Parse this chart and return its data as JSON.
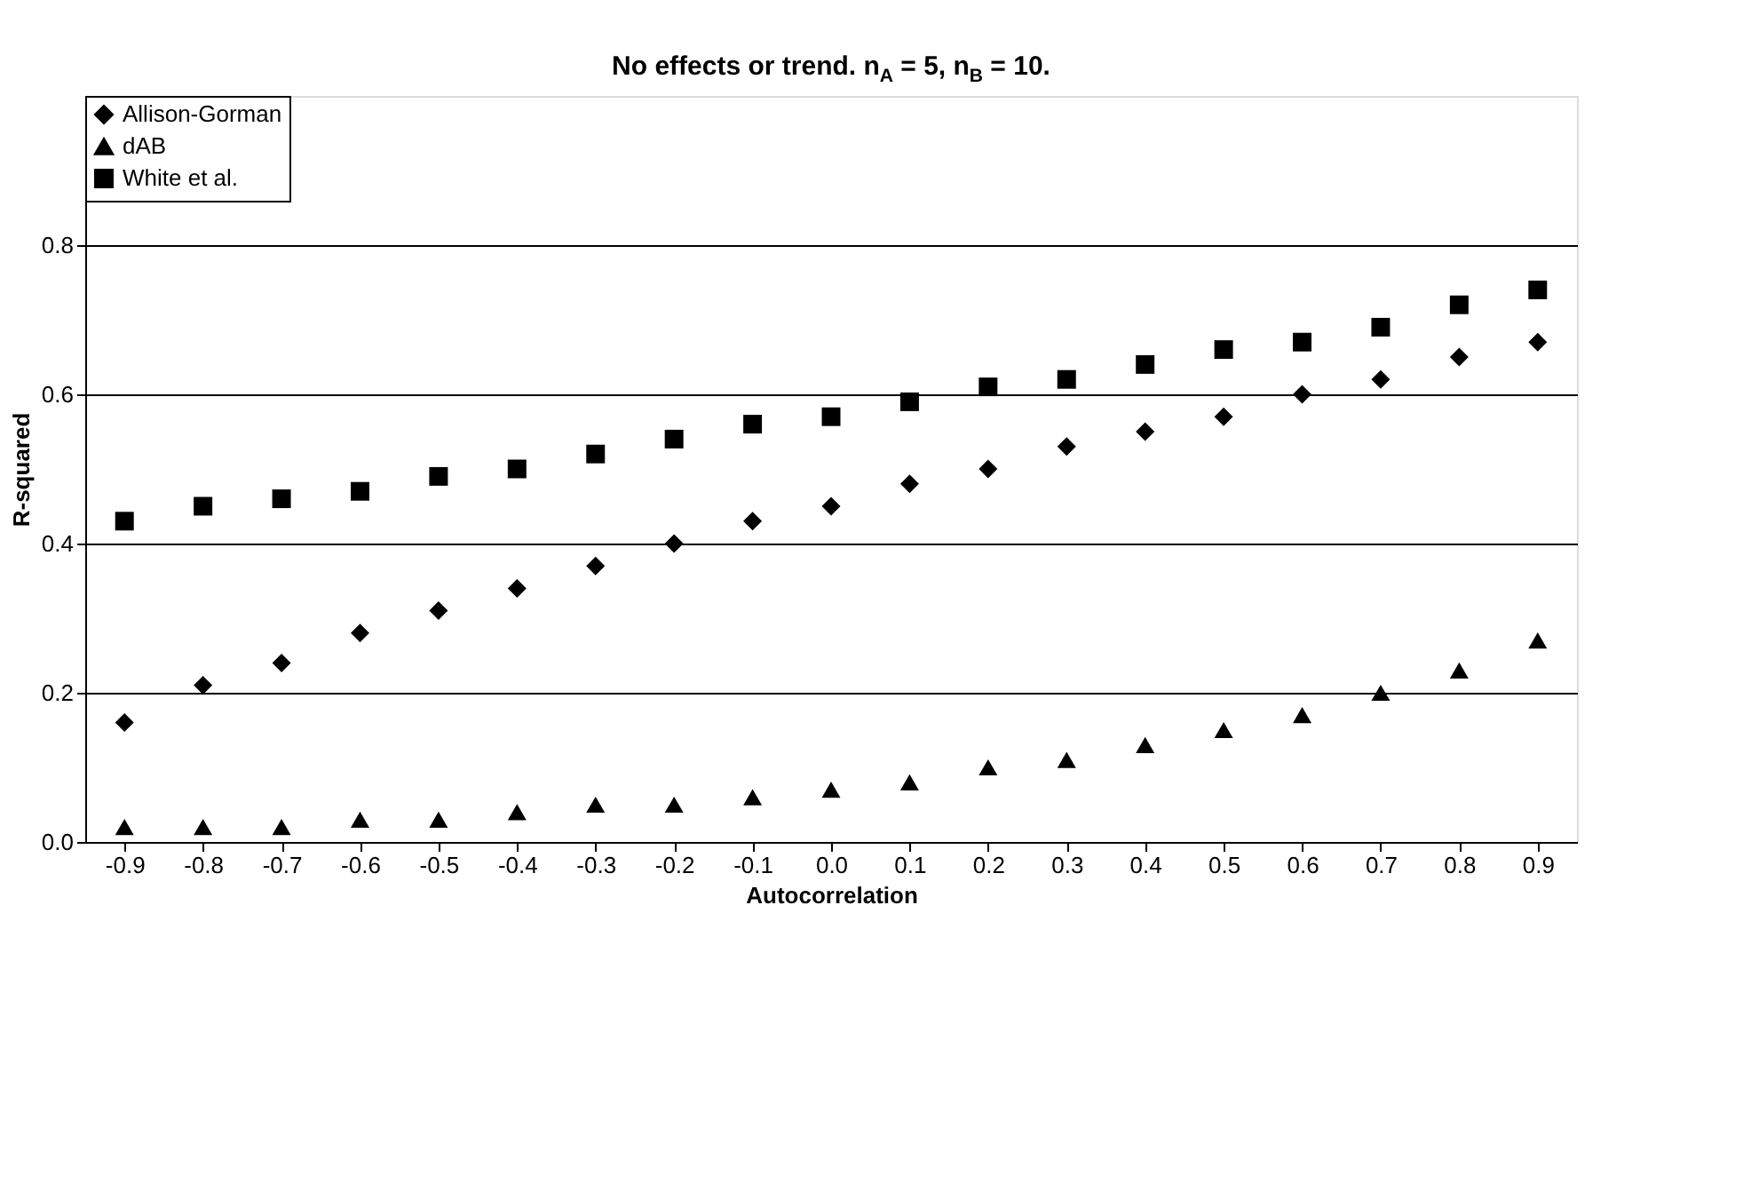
{
  "chart_data": {
    "type": "scatter",
    "title": "No effects or trend. n$_{A}$ = 5, n$_{B}$ = 10.",
    "xlabel": "Autocorrelation",
    "ylabel": "R-squared",
    "categories": [
      "-0.9",
      "-0.8",
      "-0.7",
      "-0.6",
      "-0.5",
      "-0.4",
      "-0.3",
      "-0.2",
      "-0.1",
      "0.0",
      "0.1",
      "0.2",
      "0.3",
      "0.4",
      "0.5",
      "0.6",
      "0.7",
      "0.8",
      "0.9"
    ],
    "series": [
      {
        "name": "Allison-Gorman",
        "color": "#000000",
        "marker": "diamond",
        "values": [
          0.16,
          0.21,
          0.24,
          0.28,
          0.31,
          0.34,
          0.37,
          0.4,
          0.43,
          0.45,
          0.48,
          0.5,
          0.53,
          0.55,
          0.57,
          0.6,
          0.62,
          0.65,
          0.67
        ]
      },
      {
        "name": "dAB",
        "color": "#000000",
        "marker": "triangle",
        "values": [
          0.02,
          0.02,
          0.02,
          0.03,
          0.03,
          0.04,
          0.05,
          0.05,
          0.06,
          0.07,
          0.08,
          0.1,
          0.11,
          0.13,
          0.15,
          0.17,
          0.2,
          0.23,
          0.27
        ]
      },
      {
        "name": "White et al.",
        "color": "#000000",
        "marker": "square",
        "values": [
          0.43,
          0.45,
          0.46,
          0.47,
          0.49,
          0.5,
          0.52,
          0.54,
          0.56,
          0.57,
          0.59,
          0.61,
          0.62,
          0.64,
          0.66,
          0.67,
          0.69,
          0.72,
          0.74
        ]
      }
    ],
    "ylim": [
      0,
      1
    ],
    "yticks": [
      {
        "value": 0,
        "label": "0.0"
      },
      {
        "value": 0.2,
        "label": "0.2"
      },
      {
        "value": 0.4,
        "label": "0.4"
      },
      {
        "value": 0.6,
        "label": "0.6"
      },
      {
        "value": 0.8,
        "label": "0.8"
      }
    ],
    "grid": "y",
    "legend": "top left"
  }
}
